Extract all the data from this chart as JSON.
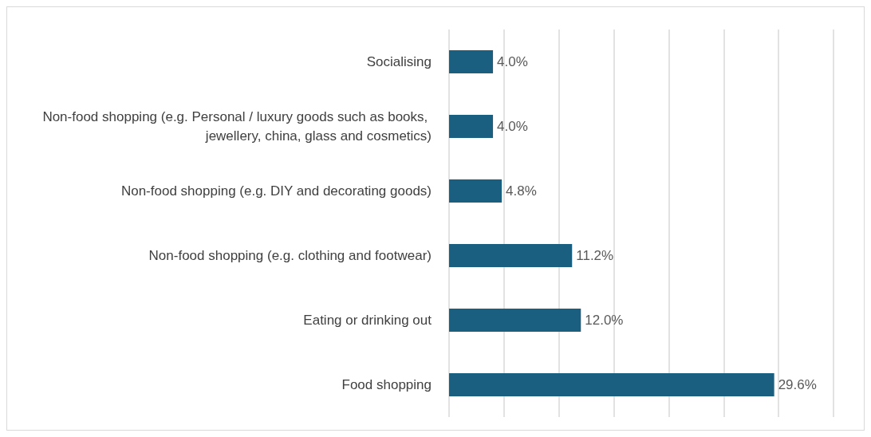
{
  "chart_data": {
    "type": "bar",
    "orientation": "horizontal",
    "categories": [
      "Socialising",
      "Non-food shopping (e.g. Personal / luxury goods such as books, jewellery, china, glass and cosmetics)",
      "Non-food shopping (e.g. DIY and decorating goods)",
      "Non-food shopping (e.g. clothing and footwear)",
      "Eating or drinking out",
      "Food shopping"
    ],
    "values": [
      4.0,
      4.0,
      4.8,
      11.2,
      12.0,
      29.6
    ],
    "value_labels": [
      "4.0%",
      "4.0%",
      "4.8%",
      "11.2%",
      "12.0%",
      "29.6%"
    ],
    "color": "#1a5e80",
    "xlim": [
      0,
      35
    ],
    "xticks": [
      {
        "value": 0,
        "label": null
      },
      {
        "value": 5,
        "label": null
      },
      {
        "value": 10,
        "label": null
      },
      {
        "value": 15,
        "label": null
      },
      {
        "value": 20,
        "label": null
      },
      {
        "value": 25,
        "label": null
      },
      {
        "value": 30,
        "label": null
      },
      {
        "value": 35,
        "label": null
      }
    ],
    "grid": "x",
    "tick_labels": "y"
  }
}
